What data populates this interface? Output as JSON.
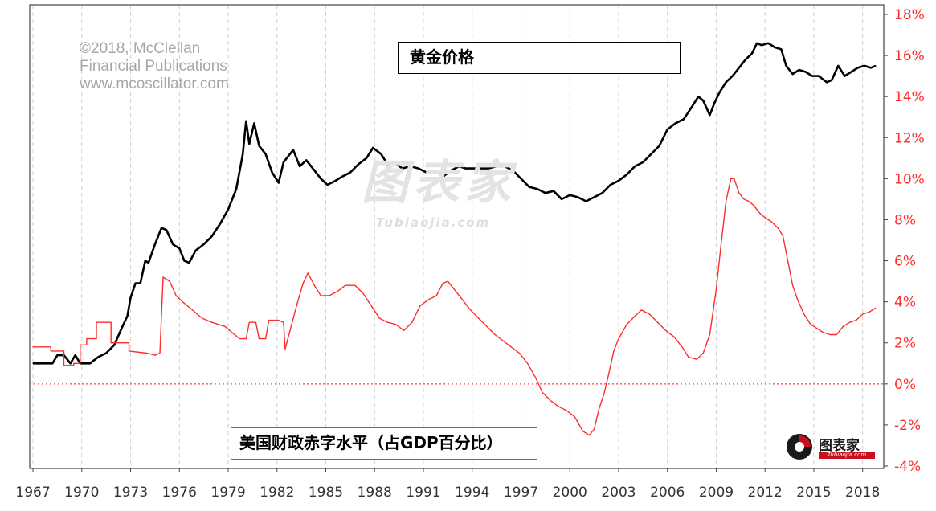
{
  "credit": {
    "line1": "©2018, McClellan",
    "line2": "Financial Publications",
    "line3": "www.mcoscillator.com"
  },
  "watermark": {
    "main": "图表家",
    "sub": "Tubiaojia.com"
  },
  "logo": {
    "text": "图表家",
    "sub": "Tubiaojia.com"
  },
  "colors": {
    "gold": "#000000",
    "deficit": "#ff2c2c",
    "axis_text": "#ff2c2c",
    "zero_line": "#ff6b6b",
    "grid": "#d0d0d0"
  },
  "chart_data": {
    "type": "line",
    "x_tick_labels": [
      "1967",
      "1970",
      "1973",
      "1976",
      "1979",
      "1982",
      "1985",
      "1988",
      "1991",
      "1994",
      "1997",
      "2000",
      "2003",
      "2006",
      "2009",
      "2012",
      "2015",
      "2018"
    ],
    "xlim": [
      1966.8,
      2019.3
    ],
    "y_right_ticks": [
      "-4%",
      "-2%",
      "0%",
      "2%",
      "4%",
      "6%",
      "8%",
      "10%",
      "12%",
      "14%",
      "16%",
      "18%"
    ],
    "ylim": [
      -4,
      18
    ],
    "grid": "vertical dashed at each year tick",
    "series": [
      {
        "name": "黄金价格",
        "color": "#000000",
        "points": [
          [
            1967.0,
            1.0
          ],
          [
            1968.2,
            1.0
          ],
          [
            1968.5,
            1.4
          ],
          [
            1968.9,
            1.4
          ],
          [
            1969.3,
            1.0
          ],
          [
            1969.6,
            1.4
          ],
          [
            1969.9,
            1.0
          ],
          [
            1970.5,
            1.0
          ],
          [
            1971.0,
            1.3
          ],
          [
            1971.5,
            1.5
          ],
          [
            1972.0,
            1.9
          ],
          [
            1972.5,
            2.8
          ],
          [
            1972.8,
            3.3
          ],
          [
            1973.0,
            4.2
          ],
          [
            1973.3,
            4.9
          ],
          [
            1973.6,
            4.9
          ],
          [
            1973.9,
            6.0
          ],
          [
            1974.1,
            5.9
          ],
          [
            1974.5,
            6.8
          ],
          [
            1974.9,
            7.6
          ],
          [
            1975.2,
            7.5
          ],
          [
            1975.6,
            6.8
          ],
          [
            1976.0,
            6.6
          ],
          [
            1976.3,
            6.0
          ],
          [
            1976.6,
            5.9
          ],
          [
            1977.0,
            6.5
          ],
          [
            1977.5,
            6.8
          ],
          [
            1978.0,
            7.2
          ],
          [
            1978.5,
            7.8
          ],
          [
            1979.0,
            8.5
          ],
          [
            1979.5,
            9.5
          ],
          [
            1979.9,
            11.2
          ],
          [
            1980.1,
            12.8
          ],
          [
            1980.3,
            11.7
          ],
          [
            1980.6,
            12.7
          ],
          [
            1980.9,
            11.6
          ],
          [
            1981.3,
            11.2
          ],
          [
            1981.7,
            10.3
          ],
          [
            1982.1,
            9.8
          ],
          [
            1982.4,
            10.8
          ],
          [
            1983.0,
            11.4
          ],
          [
            1983.4,
            10.6
          ],
          [
            1983.8,
            10.9
          ],
          [
            1984.3,
            10.4
          ],
          [
            1984.7,
            10.0
          ],
          [
            1985.1,
            9.7
          ],
          [
            1985.6,
            9.9
          ],
          [
            1986.0,
            10.1
          ],
          [
            1986.5,
            10.3
          ],
          [
            1987.0,
            10.7
          ],
          [
            1987.5,
            11.0
          ],
          [
            1987.9,
            11.5
          ],
          [
            1988.4,
            11.2
          ],
          [
            1988.8,
            10.7
          ],
          [
            1989.2,
            10.8
          ],
          [
            1989.7,
            10.5
          ],
          [
            1990.2,
            10.6
          ],
          [
            1990.7,
            10.5
          ],
          [
            1991.2,
            10.3
          ],
          [
            1991.7,
            10.4
          ],
          [
            1992.2,
            10.1
          ],
          [
            1992.7,
            10.4
          ],
          [
            1993.2,
            10.6
          ],
          [
            1993.6,
            10.5
          ],
          [
            1994.0,
            10.5
          ],
          [
            1994.5,
            10.5
          ],
          [
            1995.0,
            10.5
          ],
          [
            1995.5,
            10.6
          ],
          [
            1996.0,
            10.6
          ],
          [
            1996.5,
            10.4
          ],
          [
            1997.0,
            10.0
          ],
          [
            1997.5,
            9.6
          ],
          [
            1998.0,
            9.5
          ],
          [
            1998.5,
            9.3
          ],
          [
            1999.0,
            9.4
          ],
          [
            1999.5,
            9.0
          ],
          [
            2000.0,
            9.2
          ],
          [
            2000.5,
            9.1
          ],
          [
            2001.0,
            8.9
          ],
          [
            2001.5,
            9.1
          ],
          [
            2002.0,
            9.3
          ],
          [
            2002.5,
            9.7
          ],
          [
            2003.0,
            9.9
          ],
          [
            2003.5,
            10.2
          ],
          [
            2004.0,
            10.6
          ],
          [
            2004.5,
            10.8
          ],
          [
            2005.0,
            11.2
          ],
          [
            2005.5,
            11.6
          ],
          [
            2006.0,
            12.4
          ],
          [
            2006.5,
            12.7
          ],
          [
            2007.0,
            12.9
          ],
          [
            2007.5,
            13.5
          ],
          [
            2007.9,
            14.0
          ],
          [
            2008.2,
            13.8
          ],
          [
            2008.6,
            13.1
          ],
          [
            2008.9,
            13.7
          ],
          [
            2009.2,
            14.2
          ],
          [
            2009.6,
            14.7
          ],
          [
            2010.0,
            15.0
          ],
          [
            2010.4,
            15.4
          ],
          [
            2010.8,
            15.8
          ],
          [
            2011.2,
            16.1
          ],
          [
            2011.5,
            16.6
          ],
          [
            2011.8,
            16.5
          ],
          [
            2012.2,
            16.6
          ],
          [
            2012.6,
            16.4
          ],
          [
            2013.0,
            16.3
          ],
          [
            2013.3,
            15.5
          ],
          [
            2013.7,
            15.1
          ],
          [
            2014.1,
            15.3
          ],
          [
            2014.5,
            15.2
          ],
          [
            2014.9,
            15.0
          ],
          [
            2015.3,
            15.0
          ],
          [
            2015.8,
            14.7
          ],
          [
            2016.1,
            14.8
          ],
          [
            2016.5,
            15.5
          ],
          [
            2016.9,
            15.0
          ],
          [
            2017.3,
            15.2
          ],
          [
            2017.7,
            15.4
          ],
          [
            2018.1,
            15.5
          ],
          [
            2018.5,
            15.4
          ],
          [
            2018.8,
            15.5
          ]
        ]
      },
      {
        "name": "美国财政赤字水平（占GDP百分比）",
        "color": "#ff2c2c",
        "points": [
          [
            1967.0,
            1.8
          ],
          [
            1968.1,
            1.8
          ],
          [
            1968.1,
            1.6
          ],
          [
            1968.9,
            1.6
          ],
          [
            1968.9,
            0.9
          ],
          [
            1969.5,
            0.9
          ],
          [
            1969.5,
            1.0
          ],
          [
            1969.9,
            1.0
          ],
          [
            1969.9,
            1.9
          ],
          [
            1970.3,
            1.9
          ],
          [
            1970.3,
            2.2
          ],
          [
            1970.9,
            2.2
          ],
          [
            1970.9,
            3.0
          ],
          [
            1971.8,
            3.0
          ],
          [
            1971.8,
            2.0
          ],
          [
            1972.9,
            2.0
          ],
          [
            1972.9,
            1.6
          ],
          [
            1974.0,
            1.5
          ],
          [
            1974.5,
            1.4
          ],
          [
            1974.8,
            1.5
          ],
          [
            1975.0,
            5.2
          ],
          [
            1975.4,
            5.0
          ],
          [
            1975.8,
            4.3
          ],
          [
            1976.2,
            4.0
          ],
          [
            1976.8,
            3.6
          ],
          [
            1977.4,
            3.2
          ],
          [
            1978.0,
            3.0
          ],
          [
            1978.8,
            2.8
          ],
          [
            1979.4,
            2.4
          ],
          [
            1979.7,
            2.2
          ],
          [
            1980.1,
            2.2
          ],
          [
            1980.3,
            3.0
          ],
          [
            1980.7,
            3.0
          ],
          [
            1980.9,
            2.2
          ],
          [
            1981.3,
            2.2
          ],
          [
            1981.5,
            3.1
          ],
          [
            1982.1,
            3.1
          ],
          [
            1982.4,
            3.0
          ],
          [
            1982.5,
            1.7
          ],
          [
            1982.8,
            2.6
          ],
          [
            1983.2,
            3.8
          ],
          [
            1983.6,
            4.9
          ],
          [
            1983.9,
            5.4
          ],
          [
            1984.3,
            4.8
          ],
          [
            1984.7,
            4.3
          ],
          [
            1985.2,
            4.3
          ],
          [
            1985.7,
            4.5
          ],
          [
            1986.2,
            4.8
          ],
          [
            1986.8,
            4.8
          ],
          [
            1987.3,
            4.4
          ],
          [
            1987.8,
            3.8
          ],
          [
            1988.3,
            3.2
          ],
          [
            1988.8,
            3.0
          ],
          [
            1989.3,
            2.9
          ],
          [
            1989.8,
            2.6
          ],
          [
            1990.3,
            3.0
          ],
          [
            1990.8,
            3.8
          ],
          [
            1991.3,
            4.1
          ],
          [
            1991.8,
            4.3
          ],
          [
            1992.2,
            4.9
          ],
          [
            1992.5,
            5.0
          ],
          [
            1992.9,
            4.6
          ],
          [
            1993.4,
            4.1
          ],
          [
            1993.9,
            3.6
          ],
          [
            1994.4,
            3.2
          ],
          [
            1994.9,
            2.8
          ],
          [
            1995.4,
            2.4
          ],
          [
            1995.9,
            2.1
          ],
          [
            1996.4,
            1.8
          ],
          [
            1996.9,
            1.5
          ],
          [
            1997.4,
            1.0
          ],
          [
            1997.9,
            0.3
          ],
          [
            1998.3,
            -0.4
          ],
          [
            1998.8,
            -0.8
          ],
          [
            1999.3,
            -1.1
          ],
          [
            1999.8,
            -1.3
          ],
          [
            2000.3,
            -1.6
          ],
          [
            2000.8,
            -2.3
          ],
          [
            2001.2,
            -2.5
          ],
          [
            2001.5,
            -2.2
          ],
          [
            2001.8,
            -1.2
          ],
          [
            2002.1,
            -0.5
          ],
          [
            2002.4,
            0.5
          ],
          [
            2002.7,
            1.6
          ],
          [
            2003.0,
            2.2
          ],
          [
            2003.5,
            2.9
          ],
          [
            2004.0,
            3.3
          ],
          [
            2004.4,
            3.6
          ],
          [
            2004.9,
            3.4
          ],
          [
            2005.4,
            3.0
          ],
          [
            2005.9,
            2.6
          ],
          [
            2006.4,
            2.3
          ],
          [
            2006.9,
            1.8
          ],
          [
            2007.3,
            1.3
          ],
          [
            2007.8,
            1.2
          ],
          [
            2008.2,
            1.5
          ],
          [
            2008.6,
            2.4
          ],
          [
            2009.0,
            4.6
          ],
          [
            2009.3,
            6.8
          ],
          [
            2009.6,
            8.9
          ],
          [
            2009.9,
            10.0
          ],
          [
            2010.1,
            10.0
          ],
          [
            2010.4,
            9.3
          ],
          [
            2010.7,
            9.0
          ],
          [
            2011.0,
            8.9
          ],
          [
            2011.3,
            8.7
          ],
          [
            2011.7,
            8.3
          ],
          [
            2012.0,
            8.1
          ],
          [
            2012.4,
            7.9
          ],
          [
            2012.8,
            7.6
          ],
          [
            2013.1,
            7.2
          ],
          [
            2013.4,
            6.0
          ],
          [
            2013.7,
            4.8
          ],
          [
            2014.0,
            4.1
          ],
          [
            2014.4,
            3.4
          ],
          [
            2014.8,
            2.9
          ],
          [
            2015.2,
            2.7
          ],
          [
            2015.6,
            2.5
          ],
          [
            2016.0,
            2.4
          ],
          [
            2016.4,
            2.4
          ],
          [
            2016.8,
            2.8
          ],
          [
            2017.2,
            3.0
          ],
          [
            2017.6,
            3.1
          ],
          [
            2018.0,
            3.4
          ],
          [
            2018.4,
            3.5
          ],
          [
            2018.8,
            3.7
          ]
        ]
      }
    ]
  }
}
